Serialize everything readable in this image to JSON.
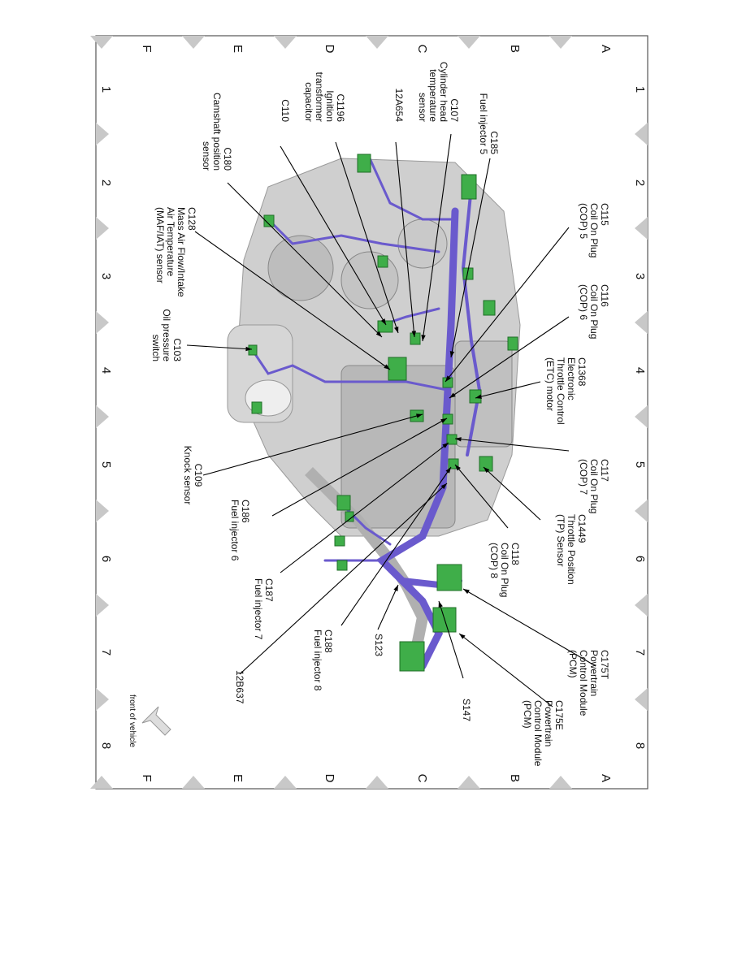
{
  "grid": {
    "columns": [
      "A",
      "B",
      "C",
      "D",
      "E",
      "F"
    ],
    "rows": [
      "1",
      "2",
      "3",
      "4",
      "5",
      "6",
      "7",
      "8"
    ]
  },
  "labels": [
    {
      "lines": [
        "C185",
        "Fuel injector 5"
      ]
    },
    {
      "lines": [
        "C107",
        "Cylinder head",
        "temperature",
        "sensor"
      ]
    },
    {
      "lines": [
        "12A654"
      ]
    },
    {
      "lines": [
        "C1196",
        "Ignition",
        "transformer",
        "capacitor"
      ]
    },
    {
      "lines": [
        "C110"
      ]
    },
    {
      "lines": [
        "C180",
        "Camshaft position",
        "sensor"
      ]
    },
    {
      "lines": [
        "C128",
        "Mass Air Flow/Intake",
        "Air Temperature",
        "(MAF/IAT) sensor"
      ]
    },
    {
      "lines": [
        "C103",
        "Oil pressure",
        "switch"
      ]
    },
    {
      "lines": [
        "C109",
        "Knock sensor"
      ]
    },
    {
      "lines": [
        "C186",
        "Fuel injector 6"
      ]
    },
    {
      "lines": [
        "C187",
        "Fuel injector 7"
      ]
    },
    {
      "lines": [
        "C188",
        "Fuel injector 8"
      ]
    },
    {
      "lines": [
        "S123"
      ]
    },
    {
      "lines": [
        "12B637"
      ]
    },
    {
      "lines": [
        "S147"
      ]
    },
    {
      "lines": [
        "C175E",
        "Powertrain",
        "Control Module",
        "(PCM)"
      ]
    },
    {
      "lines": [
        "C175T",
        "Powertrain",
        "Control Module",
        "(PCM)"
      ]
    },
    {
      "lines": [
        "C118",
        "Coil On Plug",
        "(COP) 8"
      ]
    },
    {
      "lines": [
        "C1449",
        "Throttle Position",
        "(TP) Sensor"
      ]
    },
    {
      "lines": [
        "C117",
        "Coil On Plug",
        "(COP) 7"
      ]
    },
    {
      "lines": [
        "C1368",
        "Electronic",
        "Throttle Control",
        "(ETC) motor"
      ]
    },
    {
      "lines": [
        "C116",
        "Coil On Plug",
        "(COP) 6"
      ]
    },
    {
      "lines": [
        "C115",
        "Coil On Plug",
        "(COP) 5"
      ]
    },
    {
      "lines": [
        "front of vehicle"
      ]
    }
  ]
}
